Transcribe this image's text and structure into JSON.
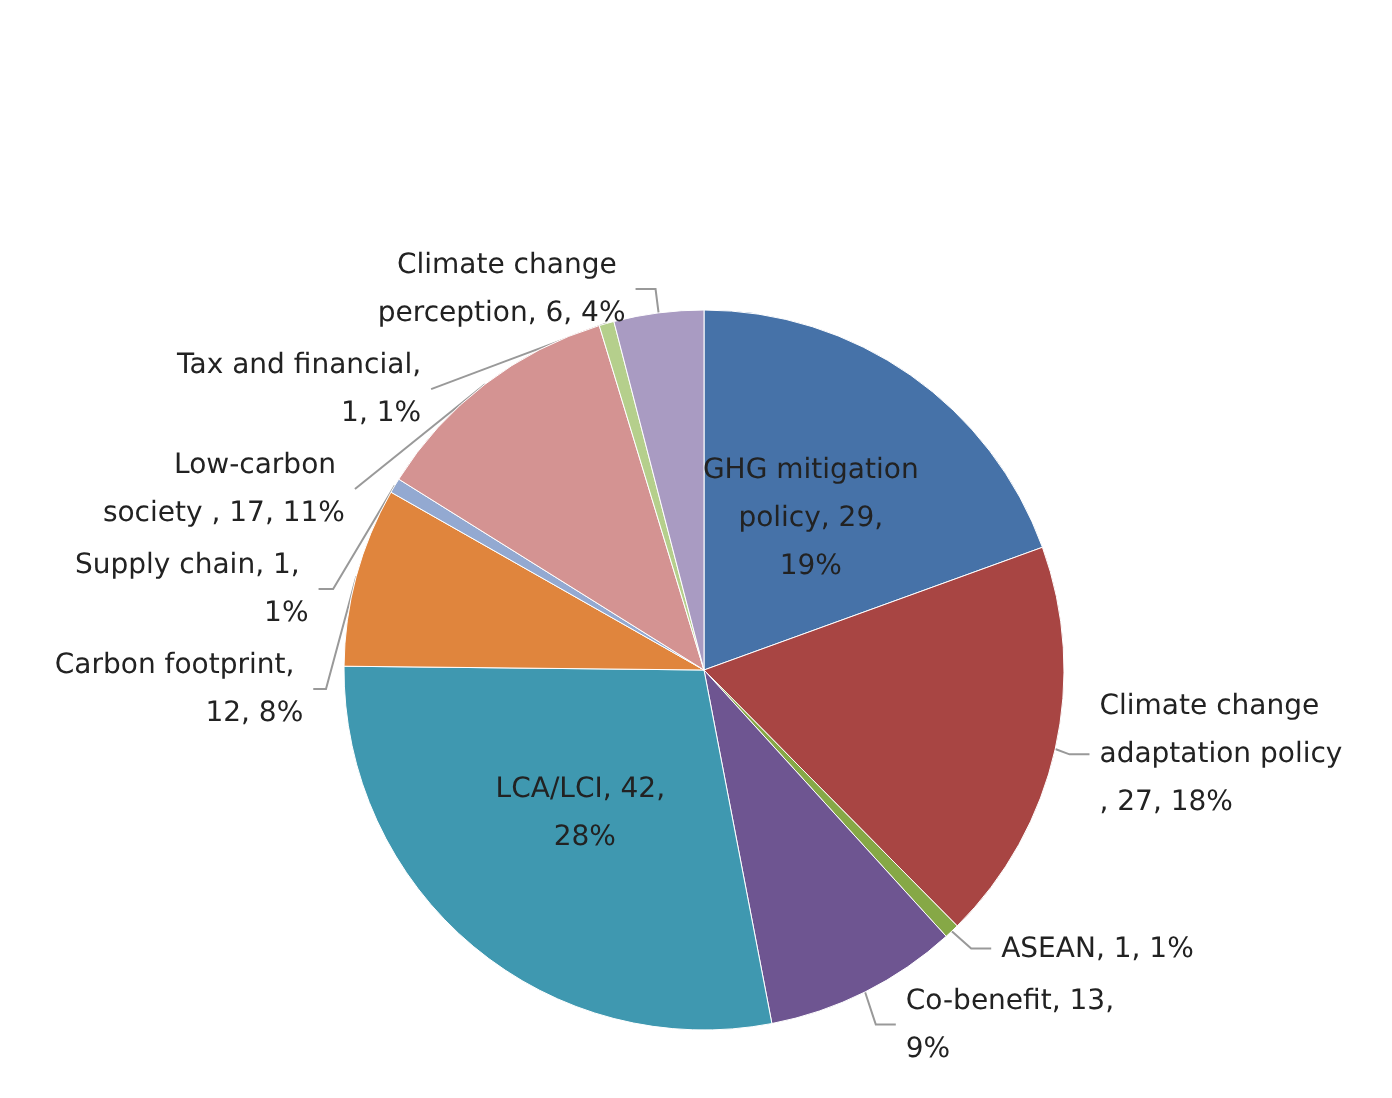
{
  "chart_data": {
    "type": "pie",
    "categories": [
      "GHG mitigation policy",
      "Climate change adaptation policy",
      "ASEAN",
      "Co-benefit",
      "LCA/LCI",
      "Carbon footprint",
      "Supply chain",
      "Low-carbon society ",
      "Tax and financial",
      "Climate change perception"
    ],
    "values": [
      29,
      27,
      1,
      13,
      42,
      12,
      1,
      17,
      1,
      6
    ],
    "value_labels": [
      ", 29, 19%",
      ", 27, 18%",
      ", 1, 1%",
      ", 13, 9%",
      ", 42, 28%",
      ", 12, 8%",
      ", 1, 1%",
      ", 17, 11%",
      ", 1, 1%",
      ", 6, 4%"
    ],
    "colors": [
      "#4672a8",
      "#a84543",
      "#86a846",
      "#6e5591",
      "#3f98b0",
      "#e0853d",
      "#93a9d1",
      "#d49392",
      "#b5cf8c",
      "#a99bc2"
    ],
    "legend": false
  }
}
